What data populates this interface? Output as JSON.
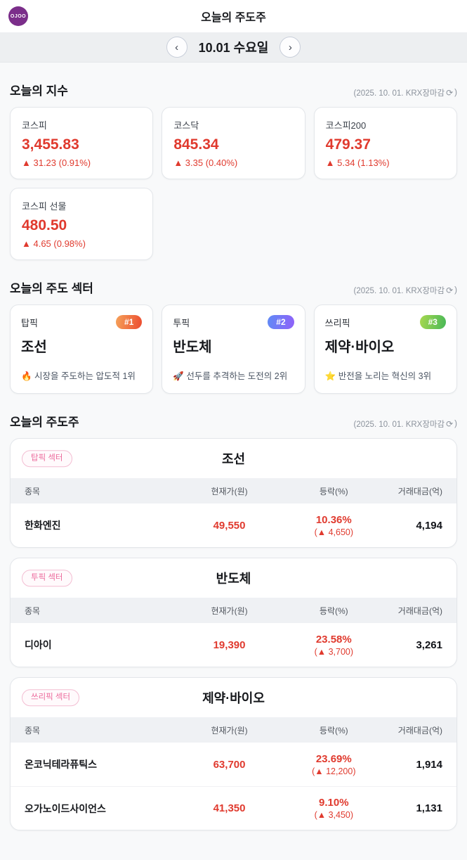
{
  "header": {
    "logo_text": "OJOO",
    "title": "오늘의 주도주"
  },
  "date_nav": {
    "prev_icon": "‹",
    "date_label": "10.01 수요일",
    "next_icon": "›"
  },
  "market_meta": {
    "prefix": "(2025. 10. 01. KRX장마감",
    "refresh_icon": "⟳",
    "suffix": ")"
  },
  "indices": {
    "title": "오늘의 지수",
    "cards": [
      {
        "label": "코스피",
        "value": "3,455.83",
        "change": "▲ 31.23 (0.91%)"
      },
      {
        "label": "코스닥",
        "value": "845.34",
        "change": "▲ 3.35 (0.40%)"
      },
      {
        "label": "코스피200",
        "value": "479.37",
        "change": "▲ 5.34 (1.13%)"
      },
      {
        "label": "코스피 선물",
        "value": "480.50",
        "change": "▲ 4.65 (0.98%)"
      }
    ]
  },
  "sectors": {
    "title": "오늘의 주도 섹터",
    "cards": [
      {
        "pick_label": "탑픽",
        "rank": "#1",
        "name": "조선",
        "desc": "🔥 시장을 주도하는 압도적 1위"
      },
      {
        "pick_label": "투픽",
        "rank": "#2",
        "name": "반도체",
        "desc": "🚀 선두를 추격하는 도전의 2위"
      },
      {
        "pick_label": "쓰리픽",
        "rank": "#3",
        "name": "제약·바이오",
        "desc": "⭐ 반전을 노리는 혁신의 3위"
      }
    ]
  },
  "leaders": {
    "title": "오늘의 주도주",
    "columns": {
      "name": "종목",
      "price": "현재가(원)",
      "change": "등락(%)",
      "volume": "거래대금(억)"
    },
    "tables": [
      {
        "badge": "탑픽 섹터",
        "sector": "조선",
        "rows": [
          {
            "name": "한화엔진",
            "price": "49,550",
            "change_pct": "10.36%",
            "change_abs": "(▲ 4,650)",
            "volume": "4,194"
          }
        ]
      },
      {
        "badge": "투픽 섹터",
        "sector": "반도체",
        "rows": [
          {
            "name": "디아이",
            "price": "19,390",
            "change_pct": "23.58%",
            "change_abs": "(▲ 3,700)",
            "volume": "3,261"
          }
        ]
      },
      {
        "badge": "쓰리픽 섹터",
        "sector": "제약·바이오",
        "rows": [
          {
            "name": "온코닉테라퓨틱스",
            "price": "63,700",
            "change_pct": "23.69%",
            "change_abs": "(▲ 12,200)",
            "volume": "1,914"
          },
          {
            "name": "오가노이드사이언스",
            "price": "41,350",
            "change_pct": "9.10%",
            "change_abs": "(▲ 3,450)",
            "volume": "1,131"
          }
        ]
      }
    ]
  },
  "colors": {
    "accent_red": "#e03a2e",
    "brand_purple": "#7b2e8a",
    "pick_badge_pink": "#ec6a9c",
    "rank1_gradient_start": "#f5a25a",
    "rank1_gradient_end": "#ec4b2f",
    "rank2_gradient_start": "#5f8bf5",
    "rank2_gradient_end": "#9061f9",
    "rank3_gradient_start": "#a8d84f",
    "rank3_gradient_end": "#47b857"
  }
}
